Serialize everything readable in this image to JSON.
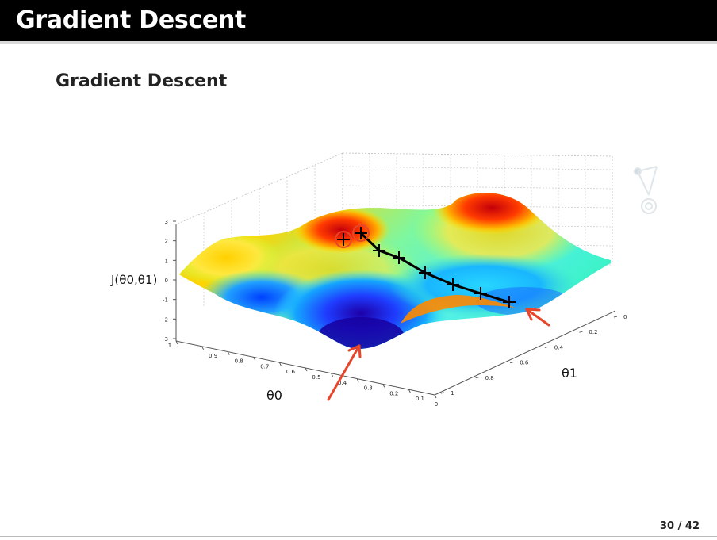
{
  "slide": {
    "title": "Gradient Descent",
    "frame_title": "Gradient Descent",
    "page_number": "30 / 42"
  },
  "colors": {
    "header_bg": "#000000",
    "header_text": "#ffffff",
    "path": "#000000",
    "arrow": "#e8452a"
  },
  "chart_data": {
    "type": "surface3d",
    "title": "",
    "xlabel": "θ0",
    "ylabel": "θ1",
    "zlabel": "J(θ0,θ1)",
    "x_ticks": [
      "1",
      "0.9",
      "0.8",
      "0.7",
      "0.6",
      "0.5",
      "0.4",
      "0.3",
      "0.2",
      "0.1",
      "0"
    ],
    "y_ticks": [
      "1",
      "0.8",
      "0.6",
      "0.4",
      "0.2",
      "0"
    ],
    "z_ticks": [
      "3",
      "2",
      "1",
      "0",
      "-1",
      "-2",
      "-3"
    ],
    "xlim": [
      0,
      1
    ],
    "ylim": [
      0,
      1
    ],
    "zlim": [
      -3,
      3
    ],
    "grid": true,
    "colormap": "jet",
    "descent_path_steps": 8
  }
}
